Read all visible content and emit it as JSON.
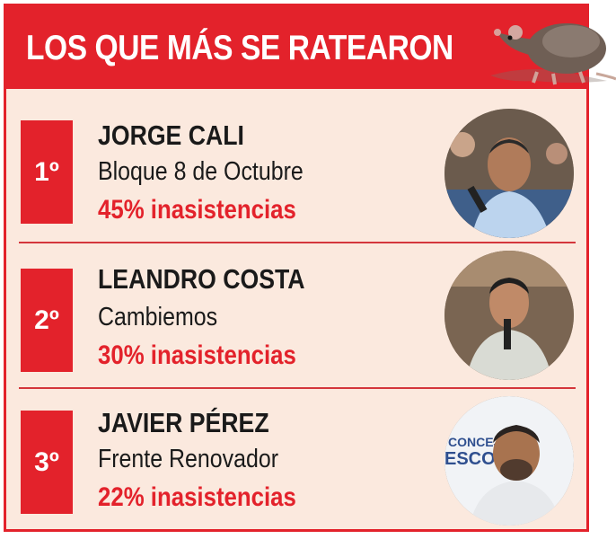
{
  "header": {
    "title": "LOS QUE MÁS SE RATEARON",
    "icon": "rat-icon",
    "background": "#e3222b"
  },
  "ranking": [
    {
      "rank": "1º",
      "name": "JORGE CALI",
      "party": "Bloque 8 de Octubre",
      "absence": "45% inasistencias",
      "absence_percent": 45,
      "photo": "person-photo"
    },
    {
      "rank": "2º",
      "name": "LEANDRO COSTA",
      "party": "Cambiemos",
      "absence": "30% inasistencias",
      "absence_percent": 30,
      "photo": "person-photo"
    },
    {
      "rank": "3º",
      "name": "JAVIER PÉREZ",
      "party": "Frente Renovador",
      "absence": "22% inasistencias",
      "absence_percent": 22,
      "photo": "person-photo",
      "photo_backdrop_text": [
        "CONCEJO",
        "ESCOB"
      ]
    }
  ],
  "colors": {
    "accent": "#e3222b",
    "panel": "#fbe9de",
    "text": "#1a1a1a"
  }
}
